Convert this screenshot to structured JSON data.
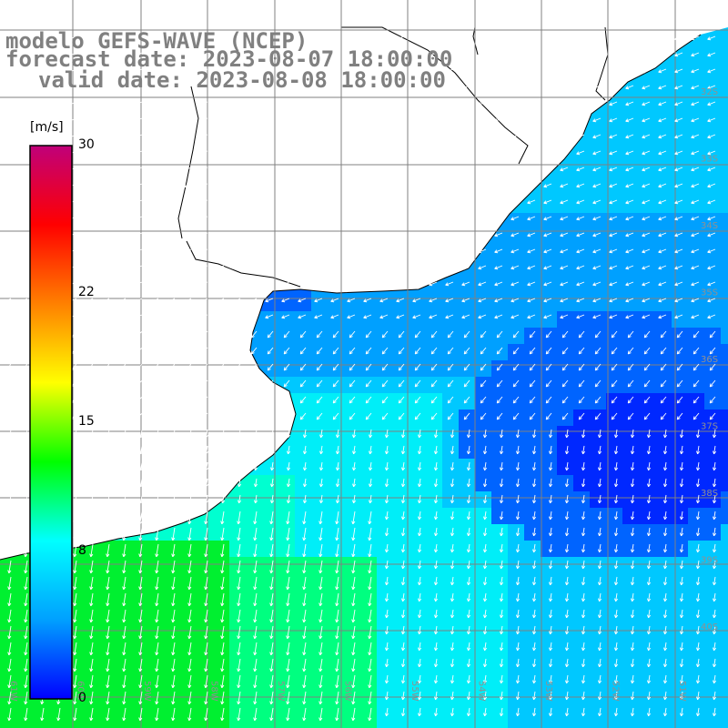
{
  "title": {
    "line1": "modelo GEFS-WAVE (NCEP)",
    "line2": "forecast date: 2023-08-07 18:00:00",
    "line3": "valid date: 2023-08-08 18:00:00"
  },
  "colorbar": {
    "unit": "[m/s]",
    "ticks": [
      {
        "value": 30,
        "label": "30"
      },
      {
        "value": 22,
        "label": "22"
      },
      {
        "value": 15,
        "label": "15"
      },
      {
        "value": 8,
        "label": "8"
      },
      {
        "value": 0,
        "label": "0"
      }
    ],
    "stops": [
      "#0000ff",
      "#00a0ff",
      "#00ffff",
      "#00ff00",
      "#ffff00",
      "#ff8000",
      "#ff0000",
      "#c0007a"
    ]
  },
  "graticule": {
    "lat_labels": [
      "32S",
      "33S",
      "34S",
      "35S",
      "36S",
      "37S",
      "38S",
      "39S",
      "40S"
    ],
    "lon_labels": [
      "61W",
      "60W",
      "59W",
      "58W",
      "57W",
      "56W",
      "55W",
      "54W",
      "53W",
      "52W",
      "51W"
    ]
  },
  "field": {
    "description_levels": [
      "dark-blue",
      "blue",
      "light-blue",
      "cyan",
      "aqua-green",
      "green"
    ],
    "colors": {
      "deep_blue": "#0028ff",
      "blue": "#0064ff",
      "sky": "#00a0ff",
      "light_blue": "#00c8ff",
      "cyan": "#00eef8",
      "aqua": "#00ffd0",
      "green_light": "#00ff80",
      "green": "#00f030"
    }
  },
  "arrow_color": "#ffffff",
  "coast_color": "#000000",
  "grid_color": "#808080"
}
